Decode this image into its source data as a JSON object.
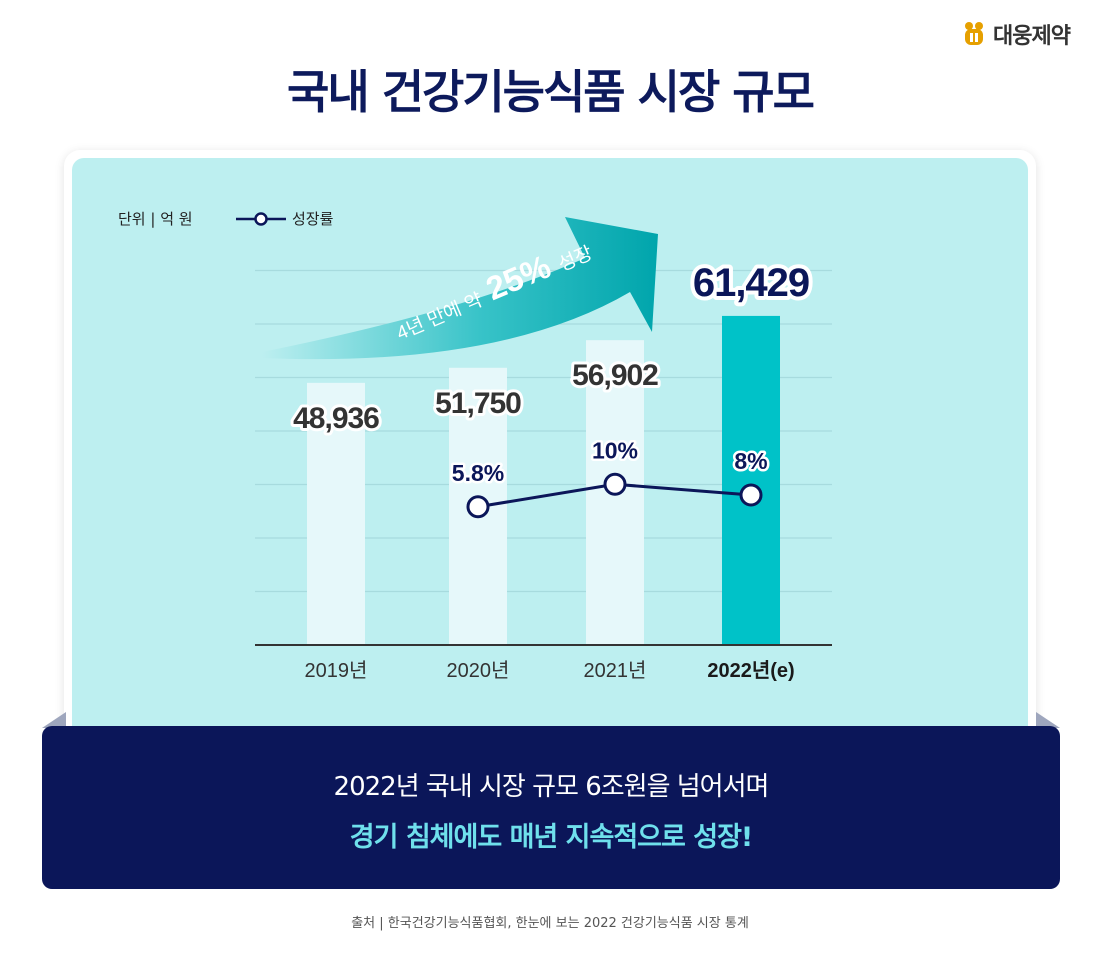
{
  "brand": {
    "name": "대웅제약"
  },
  "title": {
    "regular": "국내 건강기능식품",
    "bold": "시장 규모"
  },
  "unit_label": "단위 | 억 원",
  "legend": {
    "growth_label": "성장률"
  },
  "arrow_text": {
    "prefix": "4년 만에 약",
    "highlight": "25%",
    "suffix": "성장"
  },
  "colors": {
    "navy": "#0b1659",
    "bar_light": "#e6f8fa",
    "bar_highlight": "#00c2c8",
    "panel_bg": "#bdeff0",
    "accent_text": "#6fe0ec"
  },
  "chart_data": {
    "type": "bar",
    "title": "국내 건강기능식품 시장 규모",
    "unit": "억 원",
    "categories": [
      "2019년",
      "2020년",
      "2021년",
      "2022년(e)"
    ],
    "highlight_index": 3,
    "series": [
      {
        "name": "시장 규모",
        "type": "bar",
        "values": [
          48936,
          51750,
          56902,
          61429
        ],
        "labels": [
          "48,936",
          "51,750",
          "56,902",
          "61,429"
        ]
      },
      {
        "name": "성장률",
        "type": "line",
        "values": [
          null,
          5.8,
          10,
          8
        ],
        "labels": [
          "",
          "5.8%",
          "10%",
          "8%"
        ]
      }
    ],
    "ylim_bars": [
      0,
      70000
    ],
    "ylim_growth": [
      -20,
      50
    ]
  },
  "banner": {
    "line1": "2022년 국내 시장 규모 6조원을 넘어서며",
    "line2": "경기 침체에도 매년 지속적으로 성장!"
  },
  "source": "출처 | 한국건강기능식품협회, 한눈에 보는 2022 건강기능식품 시장 통계"
}
